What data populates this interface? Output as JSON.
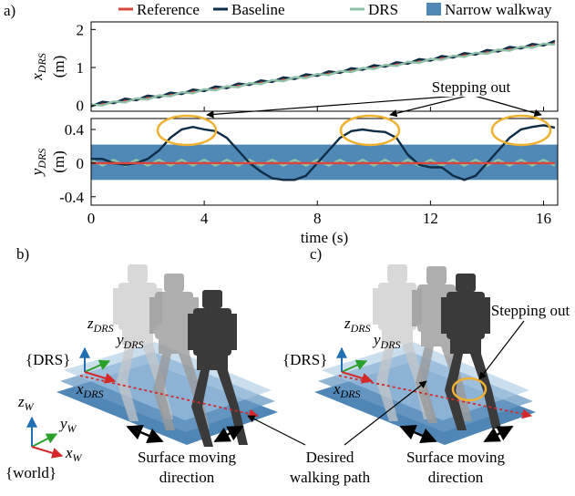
{
  "chart_data": [
    {
      "type": "line",
      "label": "a)",
      "ylabel": {
        "symbol": "x",
        "subscript": "DRS",
        "unit": "(m)"
      },
      "xlim": [
        0,
        16.5
      ],
      "ylim": [
        -0.15,
        2.2
      ],
      "yticks": [
        0,
        1,
        2
      ],
      "x": [
        0,
        0.4,
        0.8,
        1.2,
        1.6,
        2,
        2.4,
        2.8,
        3.2,
        3.6,
        4,
        4.4,
        4.8,
        5.2,
        5.6,
        6,
        6.4,
        6.8,
        7.2,
        7.6,
        8,
        8.4,
        8.8,
        9.2,
        9.6,
        10,
        10.4,
        10.8,
        11.2,
        11.6,
        12,
        12.4,
        12.8,
        13.2,
        13.6,
        14,
        14.4,
        14.8,
        15.2,
        15.6,
        16,
        16.4
      ],
      "series": [
        {
          "name": "Reference",
          "color": "#d9473c",
          "values": [
            0,
            0.04,
            0.08,
            0.12,
            0.16,
            0.2,
            0.24,
            0.28,
            0.32,
            0.36,
            0.4,
            0.44,
            0.48,
            0.52,
            0.56,
            0.6,
            0.64,
            0.68,
            0.72,
            0.76,
            0.8,
            0.84,
            0.88,
            0.92,
            0.96,
            1,
            1.04,
            1.08,
            1.12,
            1.16,
            1.2,
            1.24,
            1.28,
            1.32,
            1.36,
            1.4,
            1.44,
            1.48,
            1.52,
            1.56,
            1.6,
            1.64
          ]
        },
        {
          "name": "Baseline",
          "color": "#0f2d47",
          "values": [
            -0.02,
            0.1,
            0.06,
            0.18,
            0.14,
            0.26,
            0.22,
            0.34,
            0.3,
            0.42,
            0.38,
            0.5,
            0.46,
            0.58,
            0.54,
            0.66,
            0.62,
            0.74,
            0.7,
            0.82,
            0.78,
            0.9,
            0.86,
            0.98,
            0.94,
            1.06,
            1.02,
            1.14,
            1.1,
            1.22,
            1.18,
            1.3,
            1.26,
            1.38,
            1.34,
            1.46,
            1.42,
            1.54,
            1.5,
            1.62,
            1.58,
            1.7
          ]
        },
        {
          "name": "DRS",
          "color": "#8fc2a9",
          "values": [
            0.03,
            0,
            0.11,
            0.08,
            0.19,
            0.16,
            0.27,
            0.24,
            0.35,
            0.32,
            0.43,
            0.4,
            0.51,
            0.48,
            0.59,
            0.56,
            0.67,
            0.64,
            0.75,
            0.72,
            0.83,
            0.8,
            0.91,
            0.88,
            0.99,
            0.96,
            1.07,
            1.04,
            1.15,
            1.12,
            1.23,
            1.2,
            1.31,
            1.28,
            1.39,
            1.36,
            1.47,
            1.44,
            1.55,
            1.52,
            1.63,
            1.6
          ]
        }
      ]
    },
    {
      "type": "line",
      "ylabel": {
        "symbol": "y",
        "subscript": "DRS",
        "unit": "(m)"
      },
      "xlabel": "time (s)",
      "xlim": [
        0,
        16.5
      ],
      "xticks": [
        0,
        4,
        8,
        12,
        16
      ],
      "ylim": [
        -0.5,
        0.53
      ],
      "yticks": [
        0.4,
        0,
        -0.4
      ],
      "band": {
        "name": "Narrow walkway",
        "color": "#5088b6",
        "range": [
          -0.2,
          0.22
        ]
      },
      "annotation": "Stepping out",
      "x": [
        0,
        0.4,
        0.8,
        1.2,
        1.6,
        2,
        2.4,
        2.8,
        3.2,
        3.6,
        4,
        4.4,
        4.8,
        5.2,
        5.6,
        6,
        6.4,
        6.8,
        7.2,
        7.6,
        8,
        8.4,
        8.8,
        9.2,
        9.6,
        10,
        10.4,
        10.8,
        11.2,
        11.6,
        12,
        12.4,
        12.8,
        13.2,
        13.6,
        14,
        14.4,
        14.8,
        15.2,
        15.6,
        16,
        16.4
      ],
      "series": [
        {
          "name": "DRS",
          "color": "#8fc2a9",
          "values": [
            0.04,
            -0.03,
            0.04,
            -0.03,
            0.04,
            -0.03,
            0.04,
            -0.03,
            0.04,
            -0.03,
            0.04,
            -0.03,
            0.04,
            -0.03,
            0.04,
            -0.03,
            0.04,
            -0.03,
            0.04,
            -0.03,
            0.04,
            -0.03,
            0.04,
            -0.03,
            0.04,
            -0.03,
            0.04,
            -0.03,
            0.04,
            -0.03,
            0.04,
            -0.03,
            0.04,
            -0.03,
            0.04,
            -0.03,
            0.04,
            -0.03,
            0.04,
            -0.03,
            0.04,
            -0.03
          ]
        },
        {
          "name": "Baseline",
          "color": "#0f2d47",
          "values": [
            0.05,
            0.05,
            0,
            -0.02,
            0,
            0.05,
            0.15,
            0.3,
            0.4,
            0.43,
            0.4,
            0.38,
            0.3,
            0.15,
            0,
            -0.1,
            -0.18,
            -0.2,
            -0.2,
            -0.15,
            0,
            0.15,
            0.3,
            0.38,
            0.4,
            0.38,
            0.37,
            0.3,
            0.1,
            -0.02,
            -0.05,
            -0.05,
            -0.15,
            -0.2,
            -0.15,
            0,
            0.15,
            0.3,
            0.4,
            0.43,
            0.45,
            0.42
          ]
        },
        {
          "name": "Reference",
          "color": "#d9473c",
          "values": [
            0,
            0,
            0,
            0,
            0,
            0,
            0,
            0,
            0,
            0,
            0,
            0,
            0,
            0,
            0,
            0,
            0,
            0,
            0,
            0,
            0,
            0,
            0,
            0,
            0,
            0,
            0,
            0,
            0,
            0,
            0,
            0,
            0,
            0,
            0,
            0,
            0,
            0,
            0,
            0,
            0,
            0
          ]
        }
      ]
    }
  ],
  "diagram": {
    "b": {
      "label": "b)",
      "z_drs": {
        "symbol": "z",
        "subscript": "DRS"
      },
      "y_drs": {
        "symbol": "y",
        "subscript": "DRS"
      },
      "x_drs": {
        "symbol": "x",
        "subscript": "DRS"
      },
      "frame": "{DRS}",
      "z_w": {
        "symbol": "z",
        "subscript": "W"
      },
      "y_w": {
        "symbol": "y",
        "subscript": "W"
      },
      "x_w": {
        "symbol": "x",
        "subscript": "W"
      },
      "world": "{world}",
      "surface": [
        "Surface moving",
        "direction"
      ]
    },
    "c": {
      "label": "c)",
      "z_drs": {
        "symbol": "z",
        "subscript": "DRS"
      },
      "y_drs": {
        "symbol": "y",
        "subscript": "DRS"
      },
      "x_drs": {
        "symbol": "x",
        "subscript": "DRS"
      },
      "frame": "{DRS}",
      "stepping_out": "Stepping out",
      "surface": [
        "Surface moving",
        "direction"
      ]
    },
    "walking_path": [
      "Desired",
      "walking path"
    ]
  }
}
